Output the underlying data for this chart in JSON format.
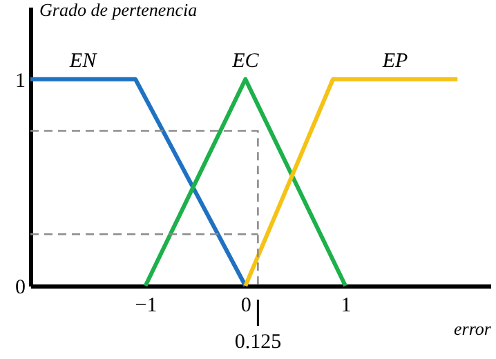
{
  "chart_data": {
    "type": "line",
    "ylabel": "Grado de pertenencia",
    "xlabel": "error",
    "xlim": [
      -2.15,
      2.45
    ],
    "ylim": [
      0,
      1.35
    ],
    "xticks": [
      -1,
      0,
      1
    ],
    "yticks": [
      0,
      1
    ],
    "marker": "none",
    "line_style": "solid",
    "series": [
      {
        "name": "EN",
        "color": "#1f72c1",
        "x": [
          -2.15,
          -1.1,
          0
        ],
        "values": [
          1,
          1,
          0
        ]
      },
      {
        "name": "EC",
        "color": "#1db04b",
        "x": [
          -1,
          0,
          1
        ],
        "values": [
          0,
          1,
          0
        ]
      },
      {
        "name": "EP",
        "color": "#f5c216",
        "x": [
          0,
          0.875,
          2.12
        ],
        "values": [
          0,
          1,
          1
        ]
      },
      {
        "color": "#8c8c8c",
        "line_style": "dashed",
        "x": [
          -2.15,
          0.125,
          0.125
        ],
        "values": [
          0.75,
          0.75,
          0
        ]
      },
      {
        "color": "#8c8c8c",
        "line_style": "dashed",
        "x": [
          -2.15,
          0.125
        ],
        "values": [
          0.25,
          0.25
        ]
      }
    ],
    "annotations": [
      {
        "text": "0.125",
        "x": 0.125
      }
    ]
  }
}
